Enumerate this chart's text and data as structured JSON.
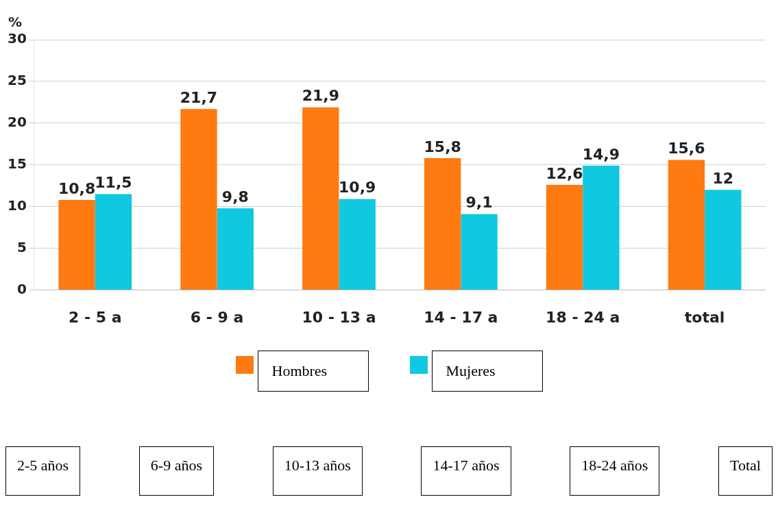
{
  "chart_data": {
    "type": "bar",
    "ylabel": "%",
    "categories": [
      "2 - 5 a",
      "6 - 9 a",
      "10 - 13 a",
      "14 - 17 a",
      "18 - 24 a",
      "total"
    ],
    "series": [
      {
        "name": "Hombres",
        "color": "#ff7a10",
        "values": [
          10.8,
          21.7,
          21.9,
          15.8,
          12.6,
          15.6
        ],
        "value_labels": [
          "10,8",
          "21,7",
          "21,9",
          "15,8",
          "12,6",
          "15,6"
        ]
      },
      {
        "name": "Mujeres",
        "color": "#10c8e0",
        "values": [
          11.5,
          9.8,
          10.9,
          9.1,
          14.9,
          12
        ],
        "value_labels": [
          "11,5",
          "9,8",
          "10,9",
          "9,1",
          "14,9",
          "12"
        ]
      }
    ],
    "ylim": [
      0,
      30
    ],
    "yticks": [
      0,
      5,
      10,
      15,
      20,
      25,
      30
    ],
    "grid": "y",
    "legend": "bottom",
    "annotations": [
      "2-5 años",
      "6-9 años",
      "10-13 años",
      "14-17 años",
      "18-24 años",
      "Total"
    ]
  }
}
